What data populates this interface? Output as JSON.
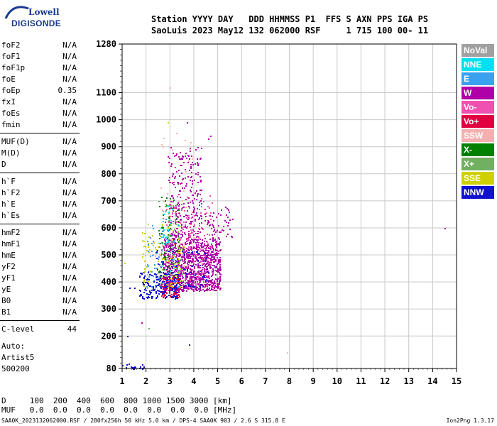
{
  "logo": {
    "line1": "Lowell",
    "line2": "DIGISONDE"
  },
  "header": {
    "labels": [
      "Station",
      "YYYY",
      "DAY",
      "DDD",
      "HHMMSS",
      "P1",
      "FFS",
      "S",
      "AXN",
      "PPS",
      "IGA",
      "PS"
    ],
    "line1": "Station YYYY DAY   DDD HHMMSS P1  FFS S AXN PPS IGA PS",
    "line2": "SaoLuis 2023 May12 132 062000 RSF     1 715 100 00- 11"
  },
  "params": [
    {
      "name": "foF2",
      "value": "N/A"
    },
    {
      "name": "foF1",
      "value": "N/A"
    },
    {
      "name": "foF1p",
      "value": "N/A"
    },
    {
      "name": "foE",
      "value": "N/A"
    },
    {
      "name": "foEp",
      "value": "0.35"
    },
    {
      "name": "fxI",
      "value": "N/A"
    },
    {
      "name": "foEs",
      "value": "N/A"
    },
    {
      "name": "fmin",
      "value": "N/A"
    },
    {
      "name": "MUF(D)",
      "value": "N/A"
    },
    {
      "name": "M(D)",
      "value": "N/A"
    },
    {
      "name": "D",
      "value": "N/A"
    },
    {
      "name": "h`F",
      "value": "N/A"
    },
    {
      "name": "h`F2",
      "value": "N/A"
    },
    {
      "name": "h`E",
      "value": "N/A"
    },
    {
      "name": "h`Es",
      "value": "N/A"
    },
    {
      "name": "hmF2",
      "value": "N/A"
    },
    {
      "name": "hmF1",
      "value": "N/A"
    },
    {
      "name": "hmE",
      "value": "N/A"
    },
    {
      "name": "yF2",
      "value": "N/A"
    },
    {
      "name": "yF1",
      "value": "N/A"
    },
    {
      "name": "yE",
      "value": "N/A"
    },
    {
      "name": "B0",
      "value": "N/A"
    },
    {
      "name": "B1",
      "value": "N/A"
    },
    {
      "name": "C-level",
      "value": "44"
    }
  ],
  "auto": {
    "line1": "Auto:",
    "line2": "Artist5",
    "line3": "500200"
  },
  "legend": [
    {
      "label": "NoVal",
      "color": "#a0a0a0"
    },
    {
      "label": "NNE",
      "color": "#00e0f0"
    },
    {
      "label": "E",
      "color": "#3aa0f0"
    },
    {
      "label": "W",
      "color": "#b000a8"
    },
    {
      "label": "Vo-",
      "color": "#f050b0"
    },
    {
      "label": "Vo+",
      "color": "#e00040"
    },
    {
      "label": "SSW",
      "color": "#f4b0b0"
    },
    {
      "label": "X-",
      "color": "#008000"
    },
    {
      "label": "X+",
      "color": "#70b060"
    },
    {
      "label": "SSE",
      "color": "#d0d000"
    },
    {
      "label": "NNW",
      "color": "#1010d0"
    }
  ],
  "bottom": {
    "line1": "D     100  200  400  600  800 1000 1500 3000 [km]",
    "line2": "MUF   0.0  0.0  0.0  0.0  0.0  0.0  0.0  0.0 [MHz]"
  },
  "footer": {
    "left": "SAA0K_2023132062000.RSF / 280fx256h 50 kHz 5.0 km / DPS-4 SAA0K 903 / 2.6 S 315.8 E",
    "right": "Ion2Png 1.3.17"
  },
  "chart_data": {
    "type": "scatter",
    "xlim": [
      1,
      15
    ],
    "ylim": [
      80,
      1280
    ],
    "x_ticks": [
      "1",
      "2",
      "3",
      "4",
      "5",
      "6",
      "7",
      "8",
      "9",
      "10",
      "11",
      "12",
      "13",
      "14",
      "15"
    ],
    "y_ticks": [
      "80",
      "200",
      "300",
      "400",
      "500",
      "600",
      "700",
      "800",
      "900",
      "1000",
      "1100",
      "1280"
    ],
    "grid": true,
    "clusters": [
      {
        "color": "#b000a8",
        "x": [
          2.7,
          5.1
        ],
        "y": [
          370,
          560
        ],
        "count": 1100
      },
      {
        "color": "#b000a8",
        "x": [
          2.9,
          4.3
        ],
        "y": [
          560,
          900
        ],
        "count": 260
      },
      {
        "color": "#b000a8",
        "x": [
          4.3,
          5.6
        ],
        "y": [
          560,
          680
        ],
        "count": 60
      },
      {
        "color": "#e00040",
        "x": [
          2.6,
          3.4
        ],
        "y": [
          345,
          420
        ],
        "count": 120
      },
      {
        "color": "#1010d0",
        "x": [
          1.7,
          3.3
        ],
        "y": [
          340,
          440
        ],
        "count": 160
      },
      {
        "color": "#1010d0",
        "x": [
          2.4,
          4.6
        ],
        "y": [
          380,
          520
        ],
        "count": 120
      },
      {
        "color": "#f050b0",
        "x": [
          2.8,
          4.8
        ],
        "y": [
          380,
          720
        ],
        "count": 180
      },
      {
        "color": "#d0d000",
        "x": [
          1.8,
          3.6
        ],
        "y": [
          380,
          620
        ],
        "count": 110
      },
      {
        "color": "#3aa0f0",
        "x": [
          2.0,
          3.4
        ],
        "y": [
          380,
          640
        ],
        "count": 70
      },
      {
        "color": "#008000",
        "x": [
          2.5,
          3.4
        ],
        "y": [
          420,
          720
        ],
        "count": 70
      },
      {
        "color": "#70b060",
        "x": [
          2.5,
          3.6
        ],
        "y": [
          420,
          700
        ],
        "count": 60
      },
      {
        "color": "#00e0f0",
        "x": [
          2.6,
          3.2
        ],
        "y": [
          440,
          700
        ],
        "count": 30
      },
      {
        "color": "#f4b0b0",
        "x": [
          2.6,
          4.0
        ],
        "y": [
          500,
          960
        ],
        "count": 40
      },
      {
        "color": "#1010d0",
        "x": [
          1.0,
          1.9
        ],
        "y": [
          80,
          100
        ],
        "count": 25
      }
    ],
    "points": [
      {
        "x": 14.5,
        "y": 600,
        "color": "#b000a8"
      },
      {
        "x": 7.9,
        "y": 140,
        "color": "#f4b0b0"
      },
      {
        "x": 1.3,
        "y": 380,
        "color": "#1010d0"
      },
      {
        "x": 1.5,
        "y": 380,
        "color": "#1010d0"
      },
      {
        "x": 3.0,
        "y": 1120,
        "color": "#f4b0b0"
      },
      {
        "x": 3.8,
        "y": 170,
        "color": "#1010d0"
      },
      {
        "x": 2.1,
        "y": 230,
        "color": "#70b060"
      },
      {
        "x": 2.9,
        "y": 990,
        "color": "#d0d000"
      },
      {
        "x": 3.7,
        "y": 990,
        "color": "#b000a8"
      },
      {
        "x": 1.1,
        "y": 470,
        "color": "#d0d000"
      },
      {
        "x": 1.8,
        "y": 250,
        "color": "#b000a8"
      },
      {
        "x": 1.2,
        "y": 200,
        "color": "#1010d0"
      },
      {
        "x": 4.7,
        "y": 940,
        "color": "#b000a8"
      },
      {
        "x": 4.6,
        "y": 930,
        "color": "#b000a8"
      }
    ]
  }
}
